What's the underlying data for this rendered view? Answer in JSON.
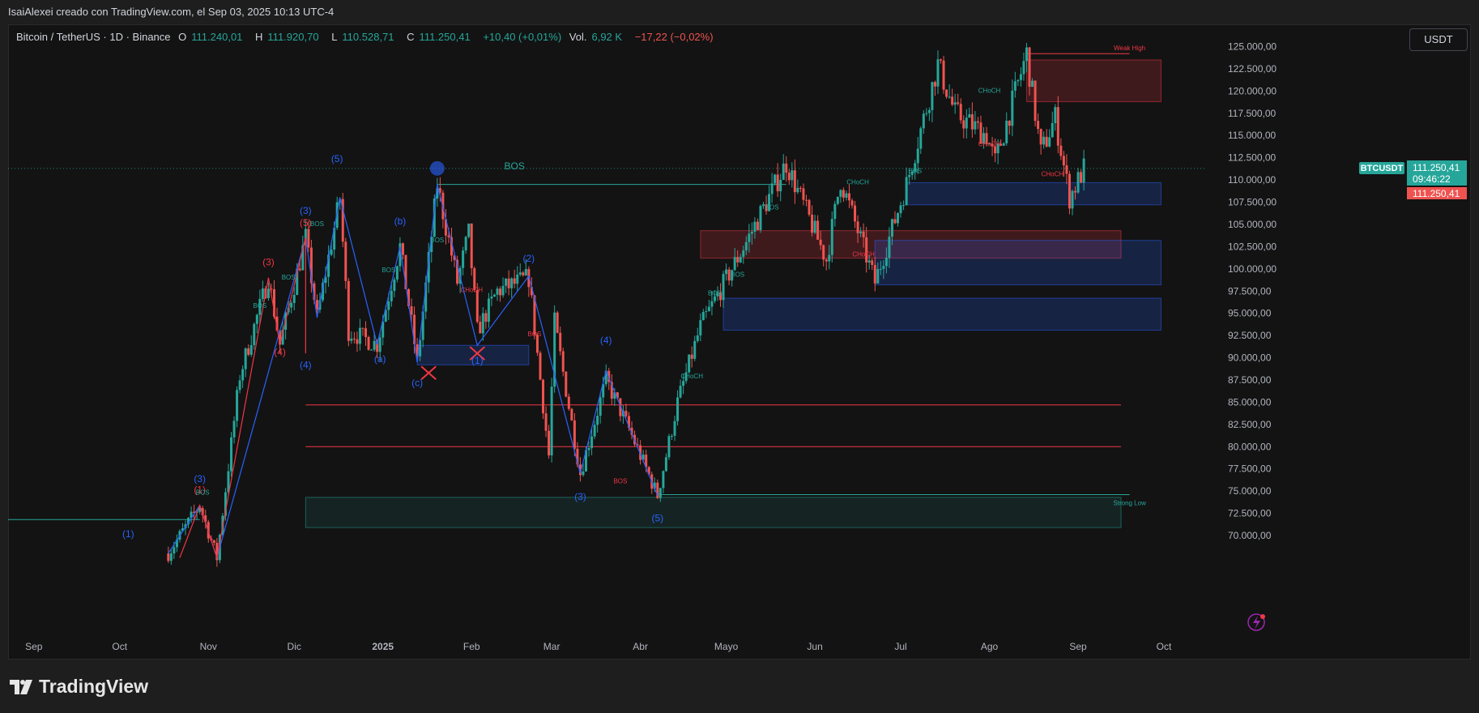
{
  "header": {
    "text": "IsaiAlexei creado con TradingView.com, el Sep 03, 2025 10:13 UTC-4"
  },
  "legend": {
    "symbol": "Bitcoin / TetherUS · 1D · Binance",
    "o_label": "O",
    "o_value": "111.240,01",
    "h_label": "H",
    "h_value": "111.920,70",
    "l_label": "L",
    "l_value": "110.528,71",
    "c_label": "C",
    "c_value": "111.250,41",
    "change": "+10,40 (+0,01%)",
    "vol_label": "Vol.",
    "vol_value": "6,92 K",
    "vol_change": "−17,22 (−0,02%)"
  },
  "currency_button": "USDT",
  "branding": {
    "logo_text": "TradingView"
  },
  "colors": {
    "up": "#26a69a",
    "down": "#ef5350",
    "wave_blue": "#2962ff",
    "wave_red": "#f23645",
    "background": "#131313"
  },
  "chart_data": {
    "type": "candlestick",
    "symbol": "BTCUSDT",
    "y_ticks": [
      "70.000,00",
      "72.500,00",
      "75.000,00",
      "77.500,00",
      "80.000,00",
      "82.500,00",
      "85.000,00",
      "87.500,00",
      "90.000,00",
      "92.500,00",
      "95.000,00",
      "97.500,00",
      "100.000,00",
      "102.500,00",
      "105.000,00",
      "107.500,00",
      "110.000,00",
      "112.500,00",
      "115.000,00",
      "117.500,00",
      "120.000,00",
      "122.500,00",
      "125.000,00"
    ],
    "ylim": [
      69000,
      125500
    ],
    "x_ticks": [
      {
        "label": "Sep",
        "date": "2024-09-01"
      },
      {
        "label": "Oct",
        "date": "2024-10-01"
      },
      {
        "label": "Nov",
        "date": "2024-11-01"
      },
      {
        "label": "Dic",
        "date": "2024-12-01"
      },
      {
        "label": "2025",
        "date": "2025-01-01"
      },
      {
        "label": "Feb",
        "date": "2025-02-01"
      },
      {
        "label": "Mar",
        "date": "2025-03-01"
      },
      {
        "label": "Abr",
        "date": "2025-04-01"
      },
      {
        "label": "Mayo",
        "date": "2025-05-01"
      },
      {
        "label": "Jun",
        "date": "2025-06-01"
      },
      {
        "label": "Jul",
        "date": "2025-07-01"
      },
      {
        "label": "Ago",
        "date": "2025-08-01"
      },
      {
        "label": "Sep",
        "date": "2025-09-01"
      },
      {
        "label": "Oct",
        "date": "2025-10-01"
      }
    ],
    "xlim": [
      "2024-08-23",
      "2025-10-16"
    ],
    "price_path": [
      [
        "2024-10-18",
        68000
      ],
      [
        "2024-10-29",
        73400
      ],
      [
        "2024-11-04",
        67500
      ],
      [
        "2024-11-12",
        88000
      ],
      [
        "2024-11-22",
        99000
      ],
      [
        "2024-11-26",
        91500
      ],
      [
        "2024-12-05",
        103500
      ],
      [
        "2024-12-09",
        94500
      ],
      [
        "2024-12-17",
        108000
      ],
      [
        "2024-12-20",
        93000
      ],
      [
        "2024-12-30",
        91500
      ],
      [
        "2025-01-07",
        102500
      ],
      [
        "2025-01-13",
        89500
      ],
      [
        "2025-01-20",
        109500
      ],
      [
        "2025-01-27",
        98500
      ],
      [
        "2025-01-31",
        104000
      ],
      [
        "2025-02-03",
        93000
      ],
      [
        "2025-02-10",
        97500
      ],
      [
        "2025-02-21",
        99000
      ],
      [
        "2025-02-28",
        79000
      ],
      [
        "2025-03-02",
        94000
      ],
      [
        "2025-03-11",
        77000
      ],
      [
        "2025-03-20",
        87500
      ],
      [
        "2025-03-28",
        82000
      ],
      [
        "2025-04-07",
        74500
      ],
      [
        "2025-04-14",
        85000
      ],
      [
        "2025-04-22",
        93500
      ],
      [
        "2025-05-08",
        103000
      ],
      [
        "2025-05-22",
        111900
      ],
      [
        "2025-06-05",
        101000
      ],
      [
        "2025-06-10",
        110000
      ],
      [
        "2025-06-22",
        98500
      ],
      [
        "2025-07-03",
        109500
      ],
      [
        "2025-07-14",
        123000
      ],
      [
        "2025-07-20",
        117500
      ],
      [
        "2025-07-31",
        115000
      ],
      [
        "2025-08-03",
        112000
      ],
      [
        "2025-08-14",
        124200
      ],
      [
        "2025-08-19",
        113000
      ],
      [
        "2025-08-24",
        117000
      ],
      [
        "2025-08-29",
        108000
      ],
      [
        "2025-09-03",
        111250
      ]
    ],
    "current_price": "111.250,41",
    "countdown": "09:46:22",
    "price_tag": "111.250,41",
    "annotations": [
      {
        "text": "BOS",
        "date": "2025-02-16",
        "price": 111200,
        "color": "#26a69a"
      },
      {
        "text": "(5)",
        "date": "2024-12-16",
        "price": 112000,
        "color": "#2962ff"
      },
      {
        "text": "(3)",
        "date": "2024-12-05",
        "price": 106200,
        "color": "#2962ff"
      },
      {
        "text": "(5)",
        "date": "2024-12-05",
        "price": 104800,
        "color": "#f23645"
      },
      {
        "text": "(b)",
        "date": "2025-01-07",
        "price": 105000,
        "color": "#2962ff"
      },
      {
        "text": "(3)",
        "date": "2024-11-22",
        "price": 100400,
        "color": "#f23645"
      },
      {
        "text": "(2)",
        "date": "2025-02-21",
        "price": 100800,
        "color": "#2962ff"
      },
      {
        "text": "(4)",
        "date": "2024-11-26",
        "price": 90300,
        "color": "#f23645"
      },
      {
        "text": "(4)",
        "date": "2024-12-05",
        "price": 88800,
        "color": "#2962ff"
      },
      {
        "text": "(a)",
        "date": "2024-12-31",
        "price": 89500,
        "color": "#2962ff"
      },
      {
        "text": "(c)",
        "date": "2025-01-13",
        "price": 86800,
        "color": "#2962ff"
      },
      {
        "text": "(1)",
        "date": "2025-02-03",
        "price": 89300,
        "color": "#2962ff"
      },
      {
        "text": "(4)",
        "date": "2025-03-20",
        "price": 91600,
        "color": "#2962ff"
      },
      {
        "text": "(3)",
        "date": "2025-03-11",
        "price": 74000,
        "color": "#2962ff"
      },
      {
        "text": "(5)",
        "date": "2025-04-07",
        "price": 71600,
        "color": "#2962ff"
      },
      {
        "text": "(3)",
        "date": "2024-10-29",
        "price": 76000,
        "color": "#2962ff"
      },
      {
        "text": "(1)",
        "date": "2024-10-29",
        "price": 74800,
        "color": "#f23645"
      },
      {
        "text": "(1)",
        "date": "2024-10-04",
        "price": 69800,
        "color": "#2962ff"
      },
      {
        "text": "BOS",
        "date": "2024-10-30",
        "price": 74600,
        "color": "#26a69a"
      },
      {
        "text": "BOS",
        "date": "2024-11-19",
        "price": 95600,
        "color": "#26a69a"
      },
      {
        "text": "BOS",
        "date": "2024-11-29",
        "price": 98800,
        "color": "#26a69a"
      },
      {
        "text": "BOS",
        "date": "2024-12-09",
        "price": 104800,
        "color": "#26a69a"
      },
      {
        "text": "BOS",
        "date": "2025-01-03",
        "price": 99600,
        "color": "#26a69a"
      },
      {
        "text": "BOS",
        "date": "2025-01-20",
        "price": 103000,
        "color": "#26a69a"
      },
      {
        "text": "CHoCH",
        "date": "2025-02-01",
        "price": 97400,
        "color": "#f23645"
      },
      {
        "text": "BOS",
        "date": "2025-02-23",
        "price": 92400,
        "color": "#f23645"
      },
      {
        "text": "BOS",
        "date": "2025-03-25",
        "price": 75900,
        "color": "#f23645"
      },
      {
        "text": "CHoCH",
        "date": "2025-04-19",
        "price": 87700,
        "color": "#26a69a"
      },
      {
        "text": "BOS",
        "date": "2025-04-27",
        "price": 97000,
        "color": "#26a69a"
      },
      {
        "text": "BOS",
        "date": "2025-05-05",
        "price": 99100,
        "color": "#26a69a"
      },
      {
        "text": "BOS",
        "date": "2025-05-17",
        "price": 106700,
        "color": "#26a69a"
      },
      {
        "text": "CHoCH",
        "date": "2025-06-16",
        "price": 109500,
        "color": "#26a69a"
      },
      {
        "text": "CHoCH",
        "date": "2025-06-18",
        "price": 101400,
        "color": "#f23645"
      },
      {
        "text": "BOS",
        "date": "2025-07-06",
        "price": 110800,
        "color": "#26a69a"
      },
      {
        "text": "CHoCH",
        "date": "2025-08-01",
        "price": 119800,
        "color": "#26a69a"
      },
      {
        "text": "CHoCH",
        "date": "2025-08-01",
        "price": 113800,
        "color": "#f23645"
      },
      {
        "text": "CHoCH",
        "date": "2025-08-23",
        "price": 110400,
        "color": "#f23645"
      },
      {
        "text": "Weak High",
        "date": "2025-09-19",
        "price": 124600,
        "color": "#f23645"
      },
      {
        "text": "Strong Low",
        "date": "2025-09-19",
        "price": 73400,
        "color": "#26a69a"
      }
    ],
    "order_blocks": [
      {
        "from": "2025-08-14",
        "to": "2025-09-30",
        "top": 123500,
        "bottom": 118800,
        "color": "#f23645"
      },
      {
        "from": "2025-07-03",
        "to": "2025-09-30",
        "top": 109700,
        "bottom": 107200,
        "color": "#2962ff"
      },
      {
        "from": "2025-04-22",
        "to": "2025-09-16",
        "top": 104300,
        "bottom": 101200,
        "color": "#f23645"
      },
      {
        "from": "2025-06-22",
        "to": "2025-09-30",
        "top": 103200,
        "bottom": 98200,
        "color": "#2962ff"
      },
      {
        "from": "2025-04-30",
        "to": "2025-09-30",
        "top": 96700,
        "bottom": 93100,
        "color": "#2962ff"
      },
      {
        "from": "2025-01-13",
        "to": "2025-02-21",
        "top": 91400,
        "bottom": 89200,
        "color": "#2962ff"
      },
      {
        "from": "2024-12-05",
        "to": "2025-09-16",
        "top": 74300,
        "bottom": 70900,
        "color": "#26a69a"
      }
    ],
    "horizontal_levels": [
      {
        "price": 84700,
        "from": "2024-12-05",
        "to": "2025-09-16",
        "color": "#f23645"
      },
      {
        "price": 80000,
        "from": "2024-12-05",
        "to": "2025-09-16",
        "color": "#f23645"
      },
      {
        "price": 111300,
        "from": "2024-08-23",
        "to": "2025-10-16",
        "color": "#26a69a",
        "dotted": true
      },
      {
        "price": 109500,
        "from": "2025-01-20",
        "to": "2025-05-22",
        "color": "#26a69a"
      },
      {
        "price": 124200,
        "from": "2025-08-14",
        "to": "2025-09-19",
        "color": "#f23645"
      },
      {
        "price": 74600,
        "from": "2025-04-07",
        "to": "2025-09-19",
        "color": "#26a69a"
      },
      {
        "price": 71800,
        "from": "2024-08-23",
        "to": "2024-10-29",
        "color": "#26a69a"
      }
    ]
  }
}
